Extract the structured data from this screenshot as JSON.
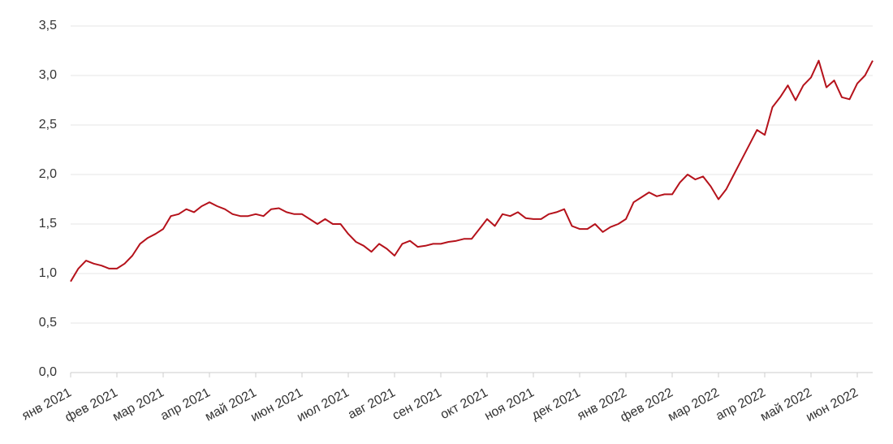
{
  "chart_data": {
    "type": "line",
    "categories": [
      "янв 2021",
      null,
      null,
      null,
      null,
      null,
      "фев 2021",
      null,
      null,
      null,
      null,
      null,
      "мар 2021",
      null,
      null,
      null,
      null,
      null,
      "апр 2021",
      null,
      null,
      null,
      null,
      null,
      "май 2021",
      null,
      null,
      null,
      null,
      null,
      "июн 2021",
      null,
      null,
      null,
      null,
      null,
      "июл 2021",
      null,
      null,
      null,
      null,
      null,
      "авг 2021",
      null,
      null,
      null,
      null,
      null,
      "сен 2021",
      null,
      null,
      null,
      null,
      null,
      "окт 2021",
      null,
      null,
      null,
      null,
      null,
      "ноя 2021",
      null,
      null,
      null,
      null,
      null,
      "дек 2021",
      null,
      null,
      null,
      null,
      null,
      "янв 2022",
      null,
      null,
      null,
      null,
      null,
      "фев 2022",
      null,
      null,
      null,
      null,
      null,
      "мар 2022",
      null,
      null,
      null,
      null,
      null,
      "апр 2022",
      null,
      null,
      null,
      null,
      null,
      "май 2022",
      null,
      null,
      null,
      null,
      null,
      "июн 2022",
      null,
      null
    ],
    "series": [
      {
        "color": "#b5121b",
        "values": [
          0.92,
          1.05,
          1.13,
          1.1,
          1.08,
          1.05,
          1.05,
          1.1,
          1.18,
          1.3,
          1.36,
          1.4,
          1.45,
          1.58,
          1.6,
          1.65,
          1.62,
          1.68,
          1.72,
          1.68,
          1.65,
          1.6,
          1.58,
          1.58,
          1.6,
          1.58,
          1.65,
          1.66,
          1.62,
          1.6,
          1.6,
          1.55,
          1.5,
          1.55,
          1.5,
          1.5,
          1.4,
          1.32,
          1.28,
          1.22,
          1.3,
          1.25,
          1.18,
          1.3,
          1.33,
          1.27,
          1.28,
          1.3,
          1.3,
          1.32,
          1.33,
          1.35,
          1.35,
          1.45,
          1.55,
          1.48,
          1.6,
          1.58,
          1.62,
          1.56,
          1.55,
          1.55,
          1.6,
          1.62,
          1.65,
          1.48,
          1.45,
          1.45,
          1.5,
          1.42,
          1.47,
          1.5,
          1.55,
          1.72,
          1.77,
          1.82,
          1.78,
          1.8,
          1.8,
          1.92,
          2.0,
          1.95,
          1.98,
          1.88,
          1.75,
          1.85,
          2.0,
          2.15,
          2.3,
          2.45,
          2.4,
          2.68,
          2.78,
          2.9,
          2.75,
          2.9,
          2.98,
          3.15,
          2.88,
          2.95,
          2.78,
          2.76,
          2.92,
          3.0,
          3.15
        ]
      }
    ],
    "ylim": [
      0,
      3.5
    ],
    "yticks": [
      {
        "value": 0,
        "label": "0,0"
      },
      {
        "value": 0.5,
        "label": "0,5"
      },
      {
        "value": 1,
        "label": "1,0"
      },
      {
        "value": 1.5,
        "label": "1,5"
      },
      {
        "value": 2,
        "label": "2,0"
      },
      {
        "value": 2.5,
        "label": "2,5"
      },
      {
        "value": 3,
        "label": "3,0"
      },
      {
        "value": 3.5,
        "label": "3,5"
      }
    ],
    "grid": true
  }
}
